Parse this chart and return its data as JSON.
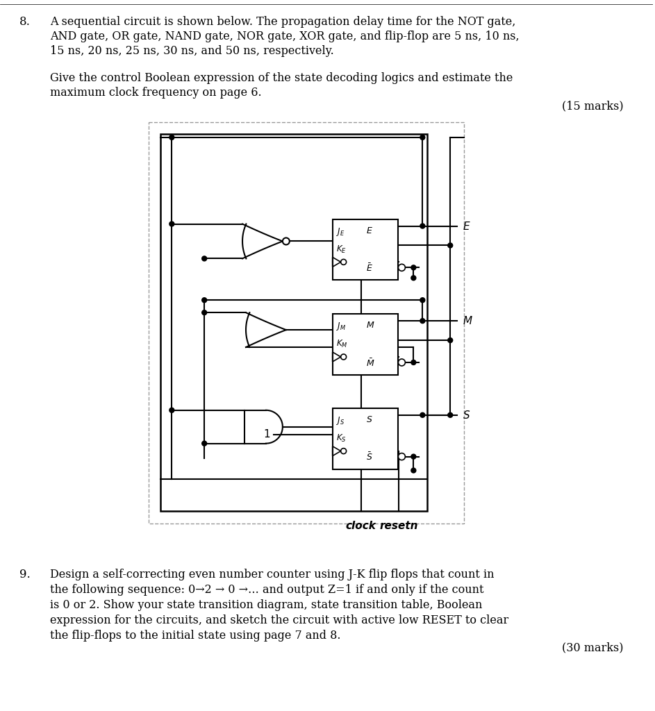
{
  "bg_color": "#ffffff",
  "text_color": "#000000",
  "line_color": "#000000",
  "question8": {
    "number": "8.",
    "text_lines": [
      "A sequential circuit is shown below. The propagation delay time for the NOT gate,",
      "AND gate, OR gate, NAND gate, NOR gate, XOR gate, and flip-flop are 5 ns, 10 ns,",
      "15 ns, 20 ns, 25 ns, 30 ns, and 50 ns, respectively."
    ],
    "text2_lines": [
      "Give the control Boolean expression of the state decoding logics and estimate the",
      "maximum clock frequency on page 6."
    ],
    "marks": "(15 marks)"
  },
  "question9": {
    "number": "9.",
    "text_lines": [
      "Design a self-correcting even number counter using J-K flip flops that count in",
      "the following sequence: 0→2 → 0 →… and output Z=1 if and only if the count",
      "is 0 or 2. Show your state transition diagram, state transition table, Boolean",
      "expression for the circuits, and sketch the circuit with active low RESET to clear",
      "the flip-flops to the initial state using page 7 and 8."
    ],
    "marks": "(30 marks)"
  }
}
